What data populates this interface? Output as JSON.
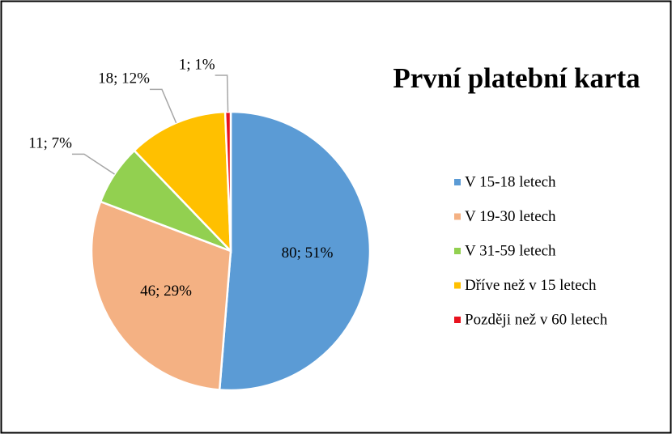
{
  "chart_data": {
    "type": "pie",
    "title": "První platební karta",
    "categories": [
      "V 15-18 letech",
      "V 19-30 letech",
      "V 31-59 letech",
      "Dříve než v 15 letech",
      "Později než v 60 letech"
    ],
    "values": [
      80,
      46,
      11,
      18,
      1
    ],
    "value_labels": [
      "80; 51%",
      "46; 29%",
      "11; 7%",
      "18; 12%",
      "1; 1%"
    ],
    "colors": [
      "#5b9bd5",
      "#f4b183",
      "#92d050",
      "#ffc000",
      "#e8121e"
    ],
    "legend": "right"
  }
}
